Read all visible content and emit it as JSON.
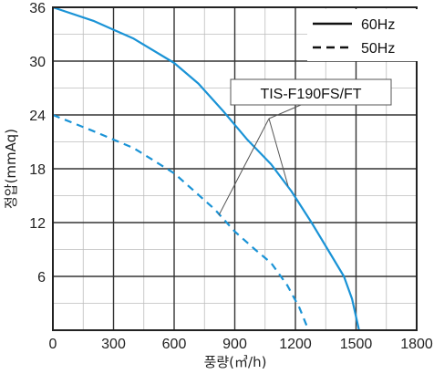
{
  "chart_data": {
    "type": "line",
    "title": "",
    "xlabel": "풍량(㎥/h)",
    "ylabel": "정압(mmAq)",
    "xlim": [
      0,
      1800
    ],
    "ylim": [
      0,
      36
    ],
    "x_ticks": [
      0,
      300,
      600,
      900,
      1200,
      1500,
      1800
    ],
    "y_ticks": [
      0,
      6,
      12,
      18,
      24,
      30,
      36
    ],
    "x_tick_labels": [
      "0",
      "300",
      "600",
      "900",
      "1200",
      "1500",
      "1800"
    ],
    "y_tick_labels": [
      "0",
      "6",
      "12",
      "18",
      "24",
      "30",
      "36"
    ],
    "grid": true,
    "legend_position": "top-right",
    "annotation": "TIS-F190FS/FT",
    "series": [
      {
        "name": "60Hz",
        "style": "solid",
        "color": "#1a93d6",
        "x": [
          0,
          200,
          400,
          600,
          720,
          840,
          960,
          1080,
          1180,
          1280,
          1360,
          1440,
          1480,
          1515
        ],
        "y": [
          36,
          34.5,
          32.5,
          29.8,
          27.5,
          24.5,
          21.3,
          18.5,
          15.5,
          12.0,
          9.0,
          6.0,
          3.5,
          0
        ]
      },
      {
        "name": "50Hz",
        "style": "dashed",
        "color": "#1a93d6",
        "x": [
          0,
          200,
          400,
          600,
          700,
          800,
          900,
          1000,
          1080,
          1160,
          1220,
          1265
        ],
        "y": [
          24,
          22.2,
          20.3,
          17.5,
          15.5,
          13.5,
          11.0,
          9.0,
          7.5,
          5.0,
          2.5,
          0
        ]
      }
    ]
  }
}
